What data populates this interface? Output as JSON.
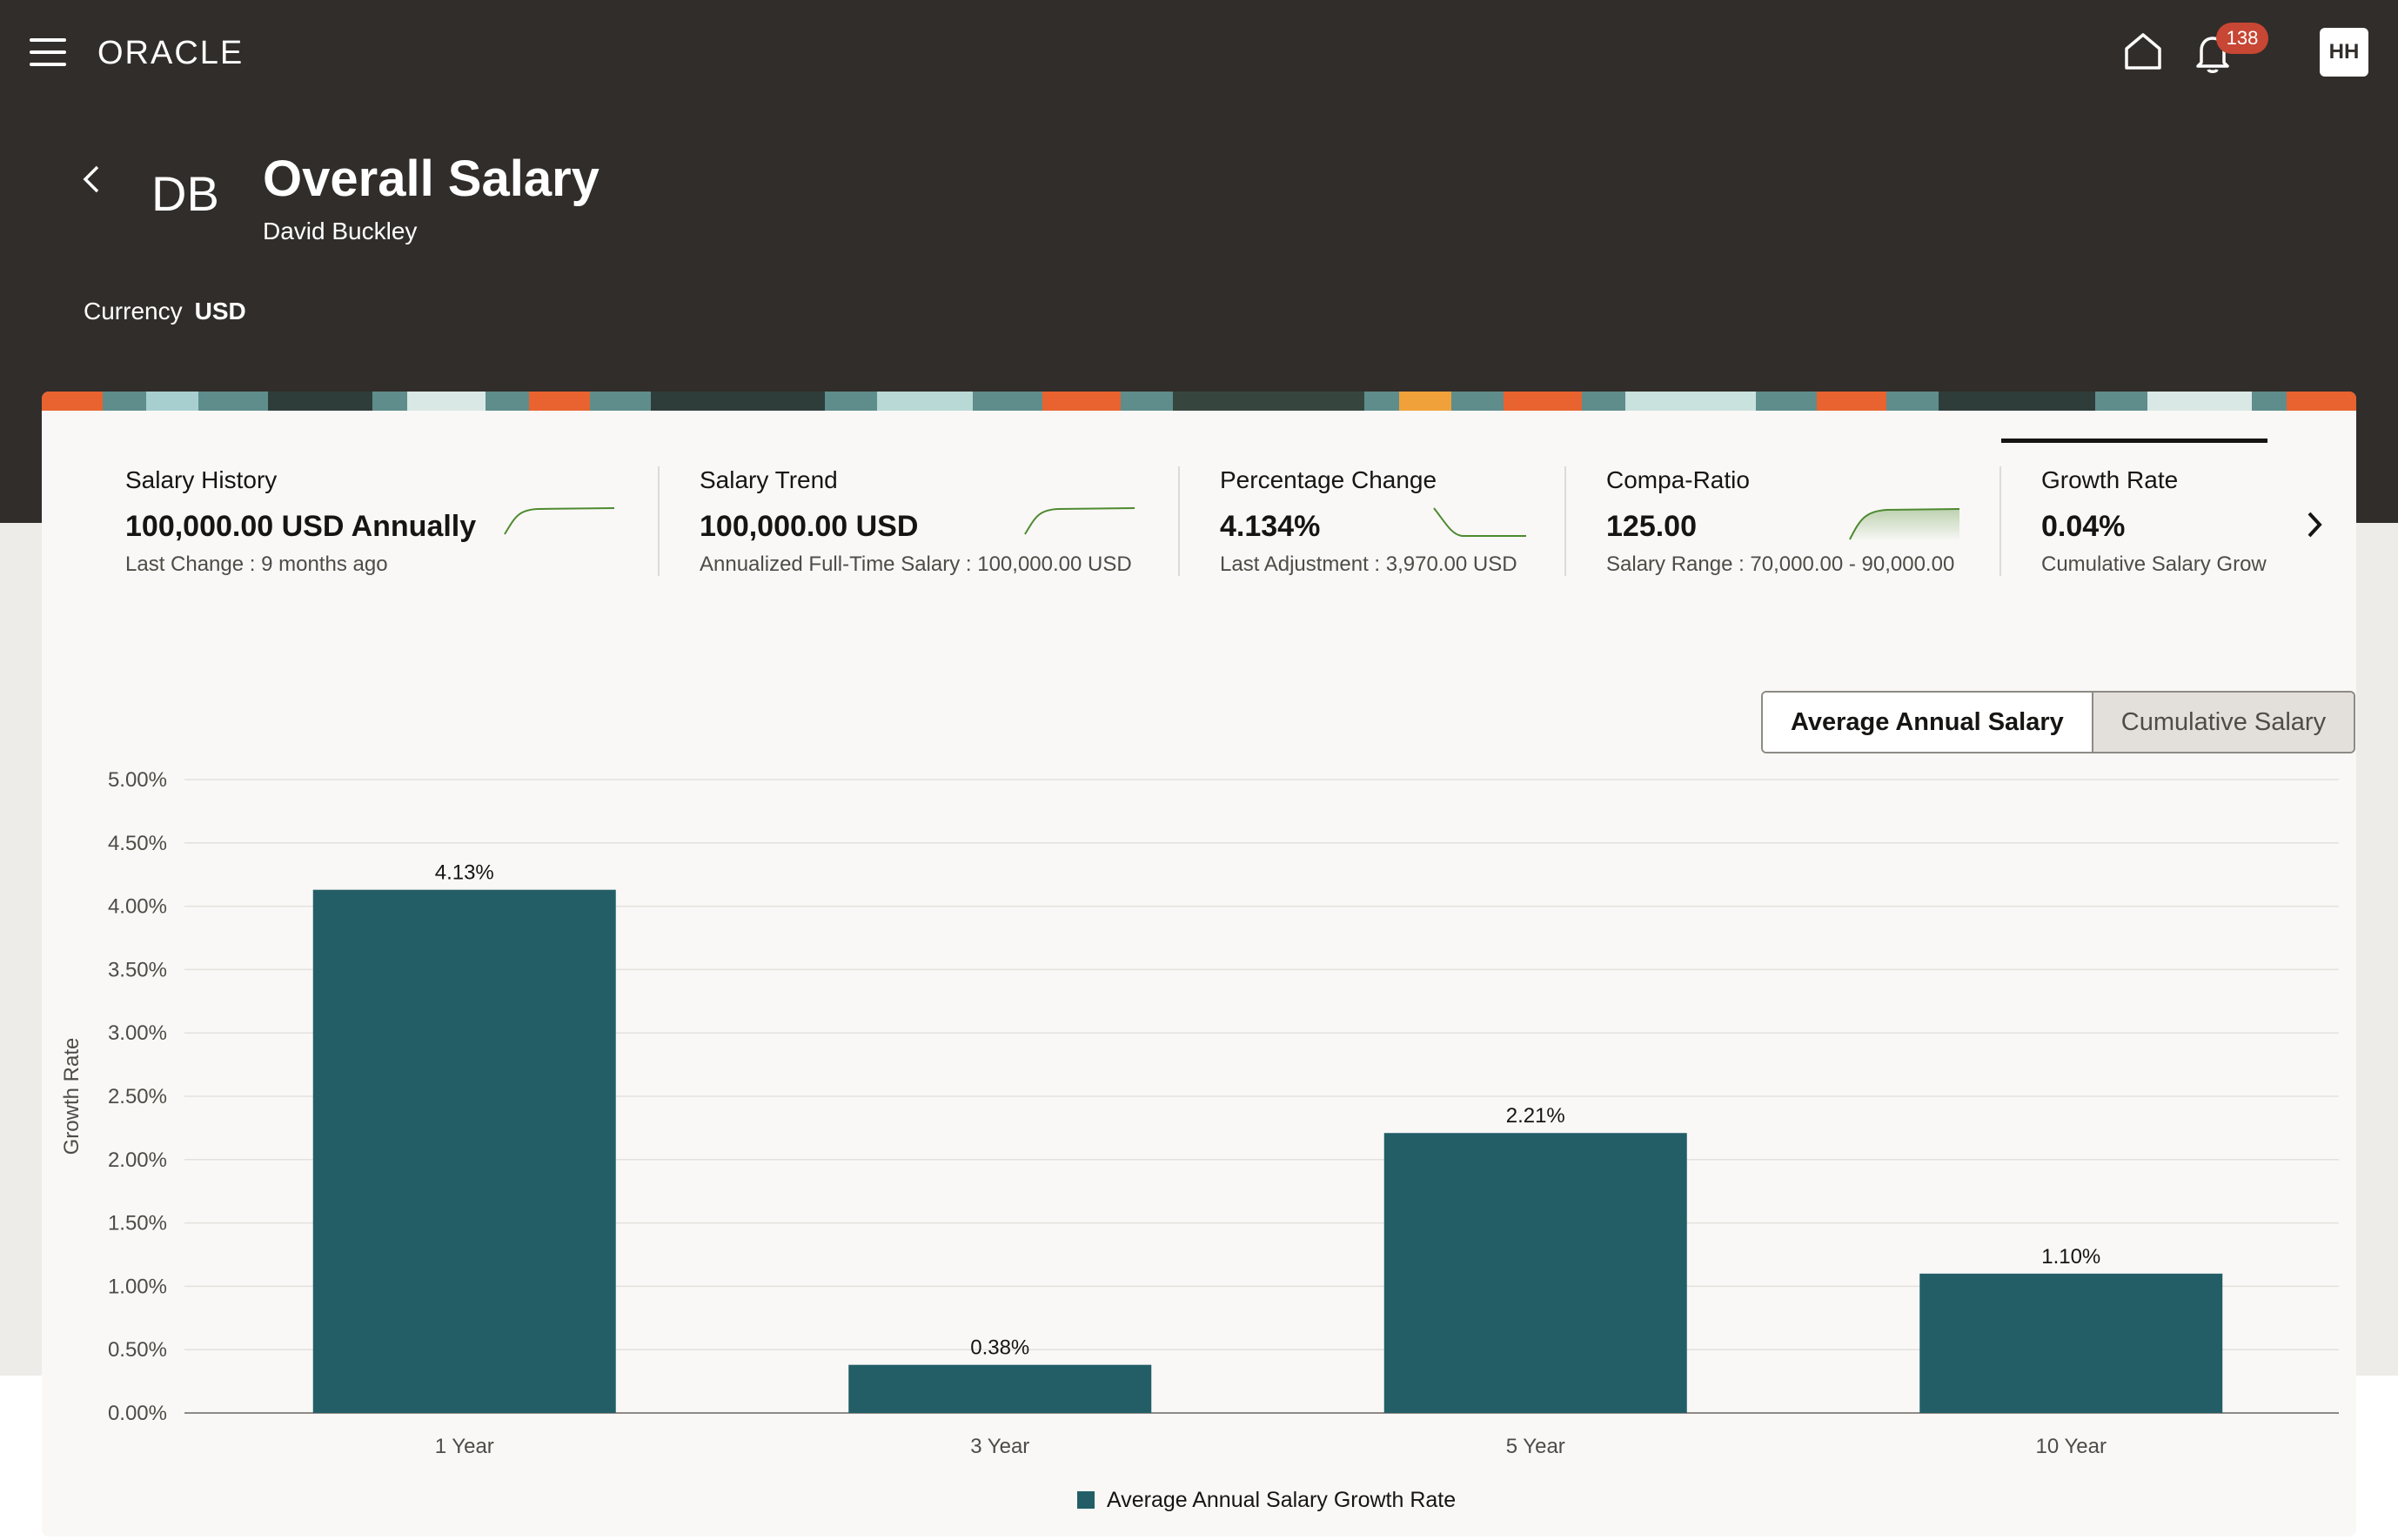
{
  "header": {
    "brand": "ORACLE",
    "notification_count": "138",
    "user_initials": "HH"
  },
  "page": {
    "initials": "DB",
    "title": "Overall Salary",
    "subtitle": "David Buckley",
    "currency_label": "Currency",
    "currency_value": "USD"
  },
  "metrics": [
    {
      "title": "Salary History",
      "value": "100,000.00 USD Annually",
      "sub": "Last Change : 9 months ago"
    },
    {
      "title": "Salary Trend",
      "value": "100,000.00 USD",
      "sub": "Annualized Full-Time Salary : 100,000.00 USD"
    },
    {
      "title": "Percentage Change",
      "value": "4.134%",
      "sub": "Last Adjustment : 3,970.00 USD"
    },
    {
      "title": "Compa-Ratio",
      "value": "125.00",
      "sub": "Salary Range : 70,000.00 - 90,000.00"
    },
    {
      "title": "Growth Rate",
      "value": "0.04%",
      "sub": "Cumulative Salary Grow"
    }
  ],
  "toggle": {
    "option_1": "Average Annual Salary",
    "option_2": "Cumulative Salary"
  },
  "colors": {
    "bar": "#235e67",
    "header": "#312d2a",
    "spark": "#4e8a2f",
    "badge": "#c74634"
  },
  "chart_data": {
    "type": "bar",
    "categories": [
      "1 Year",
      "3 Year",
      "5 Year",
      "10 Year"
    ],
    "values": [
      4.13,
      0.38,
      2.21,
      1.1
    ],
    "value_labels": [
      "4.13%",
      "0.38%",
      "2.21%",
      "1.10%"
    ],
    "y_ticks": [
      "0.00%",
      "0.50%",
      "1.00%",
      "1.50%",
      "2.00%",
      "2.50%",
      "3.00%",
      "3.50%",
      "4.00%",
      "4.50%",
      "5.00%"
    ],
    "ylim": [
      0,
      5
    ],
    "ylabel": "Growth Rate",
    "xlabel": "",
    "legend": "Average Annual Salary Growth Rate",
    "legend_position": "bottom",
    "grid": true
  }
}
